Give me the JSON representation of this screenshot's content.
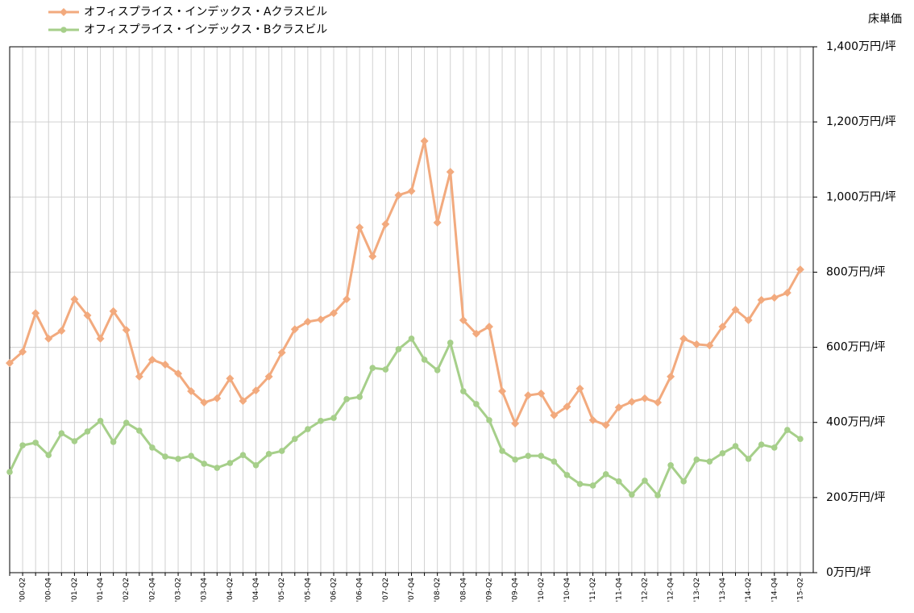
{
  "chart_data": {
    "type": "line",
    "y_axis_label": "床単価",
    "categories": [
      null,
      "'00-Q2",
      null,
      "'00-Q4",
      null,
      "'01-Q2",
      null,
      "'01-Q4",
      null,
      "'02-Q2",
      null,
      "'02-Q4",
      null,
      "'03-Q2",
      null,
      "'03-Q4",
      null,
      "'04-Q2",
      null,
      "'04-Q4",
      null,
      "'05-Q2",
      null,
      "'05-Q4",
      null,
      "'06-Q2",
      null,
      "'06-Q4",
      null,
      "'07-Q2",
      null,
      "'07-Q4",
      null,
      "'08-Q2",
      null,
      "'08-Q4",
      null,
      "'09-Q2",
      null,
      "'09-Q4",
      null,
      "'10-Q2",
      null,
      "'10-Q4",
      null,
      "'11-Q2",
      null,
      "'11-Q4",
      null,
      "'12-Q2",
      null,
      "'12-Q4",
      null,
      "'13-Q2",
      null,
      "'13-Q4",
      null,
      "'14-Q2",
      null,
      "'14-Q4",
      null,
      "'15-Q2"
    ],
    "series": [
      {
        "name": "オフィスプライス・インデックス・Aクラスビル",
        "color": "#f2aa7e",
        "marker": "diamond",
        "values": [
          558,
          588,
          691,
          623,
          644,
          728,
          685,
          623,
          696,
          646,
          522,
          567,
          554,
          530,
          483,
          453,
          464,
          517,
          457,
          485,
          522,
          586,
          648,
          668,
          674,
          691,
          728,
          919,
          842,
          928,
          1005,
          1016,
          1149,
          932,
          1067,
          672,
          636,
          655,
          483,
          397,
          472,
          477,
          419,
          442,
          490,
          406,
          393,
          440,
          455,
          464,
          453,
          522,
          623,
          608,
          605,
          655,
          700,
          672,
          726,
          732,
          745,
          807
        ]
      },
      {
        "name": "オフィスプライス・インデックス・Bクラスビル",
        "color": "#a6cf8a",
        "marker": "circle",
        "values": [
          268,
          339,
          346,
          313,
          371,
          350,
          376,
          404,
          348,
          399,
          378,
          333,
          309,
          303,
          311,
          290,
          279,
          292,
          313,
          286,
          316,
          324,
          356,
          382,
          404,
          412,
          462,
          468,
          545,
          541,
          595,
          623,
          567,
          539,
          612,
          483,
          449,
          406,
          324,
          301,
          311,
          311,
          296,
          260,
          236,
          232,
          262,
          243,
          208,
          245,
          206,
          286,
          243,
          301,
          296,
          318,
          337,
          303,
          341,
          333,
          380,
          356
        ]
      }
    ],
    "ylim": [
      0,
      1400
    ],
    "yticks": [
      {
        "value": 0,
        "label": "0万円/坪"
      },
      {
        "value": 200,
        "label": "200万円/坪"
      },
      {
        "value": 400,
        "label": "400万円/坪"
      },
      {
        "value": 600,
        "label": "600万円/坪"
      },
      {
        "value": 800,
        "label": "800万円/坪"
      },
      {
        "value": 1000,
        "label": "1,000万円/坪"
      },
      {
        "value": 1200,
        "label": "1,200万円/坪"
      },
      {
        "value": 1400,
        "label": "1,400万円/坪"
      }
    ],
    "grid": true
  }
}
